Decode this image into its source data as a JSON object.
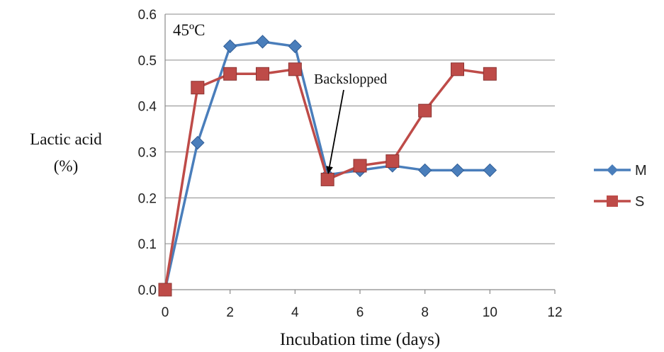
{
  "chart_data": {
    "type": "line",
    "title": "",
    "xlabel": "Incubation time (days)",
    "ylabel_line1": "Lactic acid",
    "ylabel_line2": "(%)",
    "xlim": [
      0,
      12
    ],
    "ylim": [
      0,
      0.6
    ],
    "x_ticks": [
      "0",
      "2",
      "4",
      "6",
      "8",
      "10",
      "12"
    ],
    "y_ticks": [
      "0.0",
      "0.1",
      "0.2",
      "0.3",
      "0.4",
      "0.5",
      "0.6"
    ],
    "grid": "horizontal",
    "legend_position": "right",
    "series": [
      {
        "name": "M",
        "color": "#4a7ebb",
        "marker": "diamond",
        "x": [
          0,
          1,
          2,
          3,
          4,
          5,
          6,
          7,
          8,
          9,
          10
        ],
        "values": [
          0,
          0.32,
          0.53,
          0.54,
          0.53,
          0.25,
          0.26,
          0.27,
          0.26,
          0.26,
          0.26
        ]
      },
      {
        "name": "S",
        "color": "#be4b48",
        "marker": "square",
        "x": [
          0,
          1,
          2,
          3,
          4,
          5,
          6,
          7,
          8,
          9,
          10
        ],
        "values": [
          0,
          0.44,
          0.47,
          0.47,
          0.48,
          0.24,
          0.27,
          0.28,
          0.39,
          0.48,
          0.47
        ]
      }
    ],
    "annotations": [
      {
        "text": "45ºC"
      },
      {
        "text": "Backslopped",
        "arrow_to": {
          "x": 5,
          "y": 0.25
        }
      }
    ]
  }
}
